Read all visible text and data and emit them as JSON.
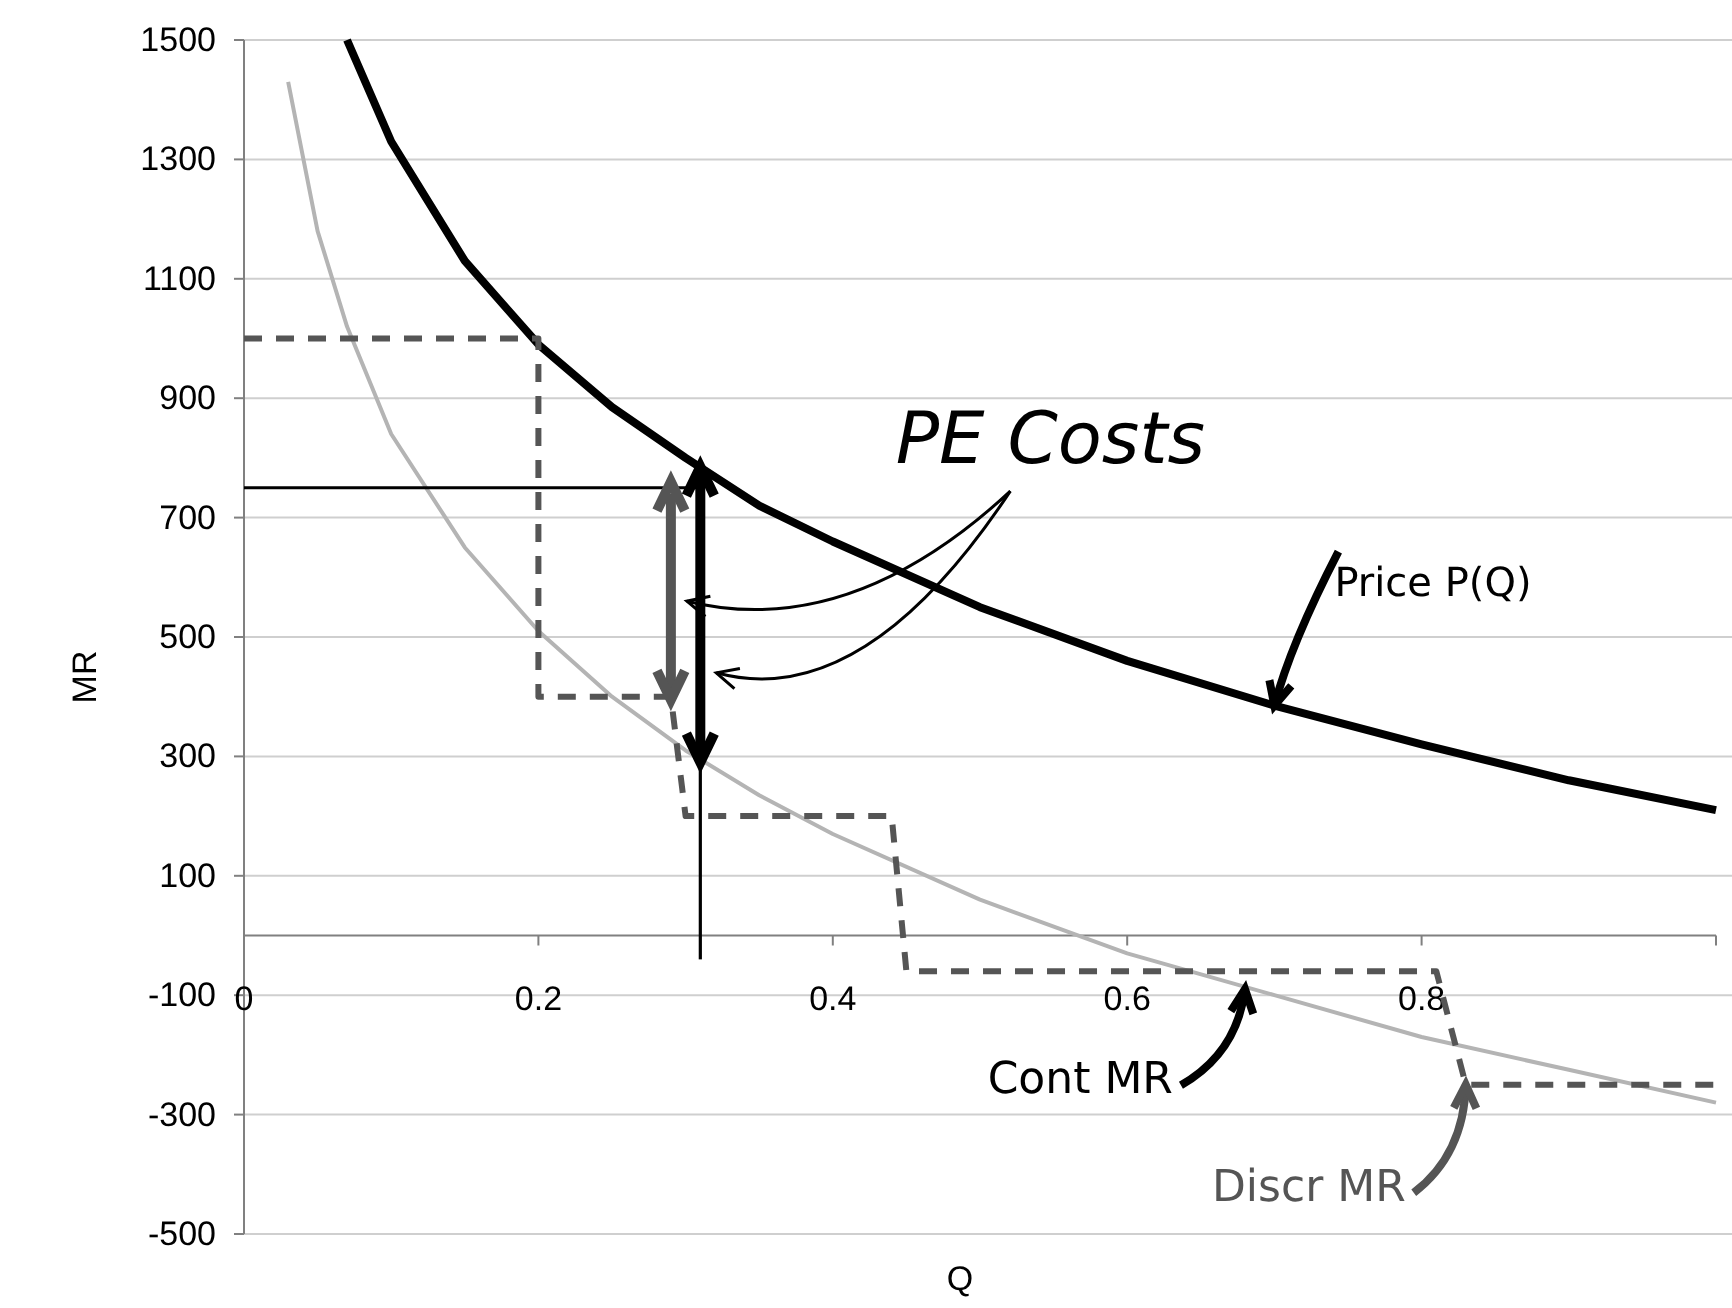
{
  "chart_data": {
    "type": "line",
    "xlabel": "Q",
    "ylabel": "MR",
    "xlim": [
      0,
      1
    ],
    "ylim": [
      -500,
      1500
    ],
    "xticks": [
      0,
      0.2,
      0.4,
      0.6,
      0.8,
      {
        "value": 1,
        "label": null
      }
    ],
    "yticks": [
      -500,
      -300,
      -100,
      100,
      300,
      500,
      700,
      900,
      1100,
      1300,
      1500
    ],
    "grid": "y",
    "marker": "none",
    "series": [
      {
        "color": "#000000",
        "x": [
          0.07,
          0.1,
          0.15,
          0.2,
          0.25,
          0.3,
          0.35,
          0.4,
          0.5,
          0.6,
          0.7,
          0.8,
          0.9,
          1.0
        ],
        "values": [
          1500,
          1330,
          1130,
          990,
          885,
          800,
          720,
          660,
          550,
          460,
          385,
          320,
          260,
          210
        ]
      },
      {
        "color": "#b4b4b4",
        "x": [
          0.03,
          0.05,
          0.07,
          0.1,
          0.15,
          0.2,
          0.25,
          0.3,
          0.35,
          0.4,
          0.5,
          0.6,
          0.7,
          0.8,
          0.9,
          1.0
        ],
        "values": [
          1430,
          1180,
          1020,
          840,
          650,
          510,
          400,
          310,
          235,
          170,
          60,
          -30,
          -100,
          -170,
          -225,
          -280
        ]
      },
      {
        "color": "#555555",
        "line_style": "dashed",
        "x": [
          0,
          0.2,
          0.2,
          0.29,
          0.3,
          0.44,
          0.45,
          0.81,
          0.83,
          1.0
        ],
        "values": [
          1000,
          1000,
          400,
          400,
          200,
          200,
          -60,
          -60,
          -250,
          -250
        ]
      },
      {
        "color": "#000000",
        "x": [
          0,
          0.31
        ],
        "values": [
          750,
          750
        ]
      },
      {
        "color": "#000000",
        "x": [
          0.31,
          0.31
        ],
        "values": [
          -40,
          290
        ]
      }
    ],
    "annotations": [
      "PE Costs",
      {
        "text": "Price P(Q)",
        "x": 0.7,
        "y": 385
      },
      {
        "text": "Cont MR",
        "x": 0.68,
        "y": -90
      },
      {
        "text": "Discr MR",
        "x": 0.83,
        "y": -250
      }
    ]
  }
}
